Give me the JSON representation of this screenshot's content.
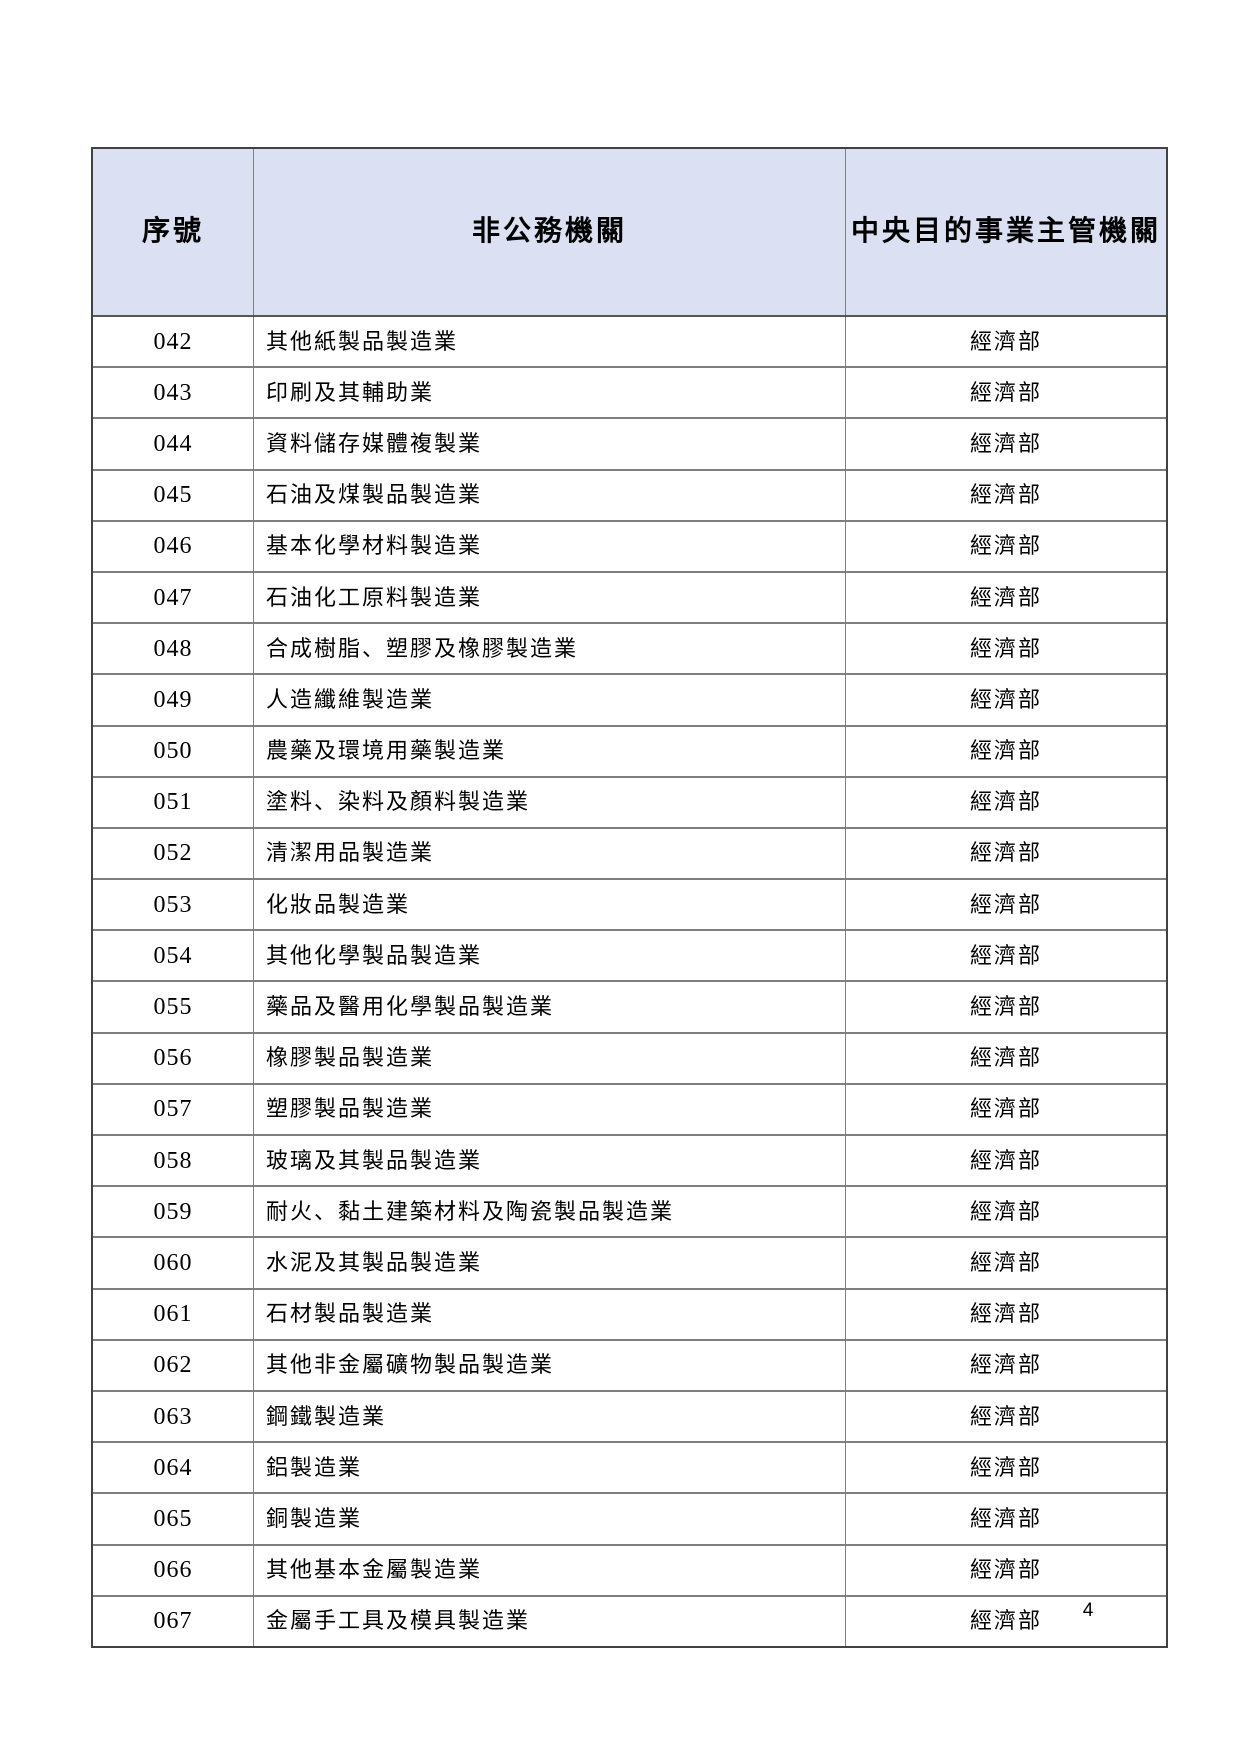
{
  "table": {
    "headers": [
      "序號",
      "非公務機關",
      "中央目的事業主管機關"
    ],
    "rows": [
      {
        "no": "042",
        "org": "其他紙製品製造業",
        "authority": "經濟部"
      },
      {
        "no": "043",
        "org": "印刷及其輔助業",
        "authority": "經濟部"
      },
      {
        "no": "044",
        "org": "資料儲存媒體複製業",
        "authority": "經濟部"
      },
      {
        "no": "045",
        "org": "石油及煤製品製造業",
        "authority": "經濟部"
      },
      {
        "no": "046",
        "org": "基本化學材料製造業",
        "authority": "經濟部"
      },
      {
        "no": "047",
        "org": "石油化工原料製造業",
        "authority": "經濟部"
      },
      {
        "no": "048",
        "org": "合成樹脂、塑膠及橡膠製造業",
        "authority": "經濟部"
      },
      {
        "no": "049",
        "org": "人造纖維製造業",
        "authority": "經濟部"
      },
      {
        "no": "050",
        "org": "農藥及環境用藥製造業",
        "authority": "經濟部"
      },
      {
        "no": "051",
        "org": "塗料、染料及顏料製造業",
        "authority": "經濟部"
      },
      {
        "no": "052",
        "org": "清潔用品製造業",
        "authority": "經濟部"
      },
      {
        "no": "053",
        "org": "化妝品製造業",
        "authority": "經濟部"
      },
      {
        "no": "054",
        "org": "其他化學製品製造業",
        "authority": "經濟部"
      },
      {
        "no": "055",
        "org": "藥品及醫用化學製品製造業",
        "authority": "經濟部"
      },
      {
        "no": "056",
        "org": "橡膠製品製造業",
        "authority": "經濟部"
      },
      {
        "no": "057",
        "org": "塑膠製品製造業",
        "authority": "經濟部"
      },
      {
        "no": "058",
        "org": "玻璃及其製品製造業",
        "authority": "經濟部"
      },
      {
        "no": "059",
        "org": "耐火、黏土建築材料及陶瓷製品製造業",
        "authority": "經濟部"
      },
      {
        "no": "060",
        "org": "水泥及其製品製造業",
        "authority": "經濟部"
      },
      {
        "no": "061",
        "org": "石材製品製造業",
        "authority": "經濟部"
      },
      {
        "no": "062",
        "org": "其他非金屬礦物製品製造業",
        "authority": "經濟部"
      },
      {
        "no": "063",
        "org": "鋼鐵製造業",
        "authority": "經濟部"
      },
      {
        "no": "064",
        "org": "鋁製造業",
        "authority": "經濟部"
      },
      {
        "no": "065",
        "org": "銅製造業",
        "authority": "經濟部"
      },
      {
        "no": "066",
        "org": "其他基本金屬製造業",
        "authority": "經濟部"
      },
      {
        "no": "067",
        "org": "金屬手工具及模具製造業",
        "authority": "經濟部"
      }
    ]
  },
  "page_number": "4",
  "colors": {
    "header_bg": "#dbe1f2",
    "grid_line": "#7f7f7f",
    "outer_border": "#424242",
    "text": "#000000"
  }
}
